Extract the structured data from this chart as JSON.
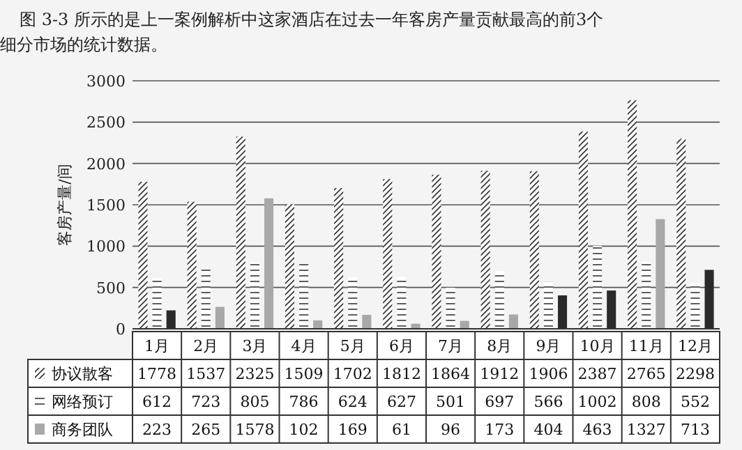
{
  "chart_data": {
    "type": "bar",
    "title": "图 3-3 所示的是上一案例解析中这家酒店在过去一年客房产量贡献最高的前3个细分市场的统计数据。",
    "ylabel": "客房产量/间",
    "categories": [
      "1月",
      "2月",
      "3月",
      "4月",
      "5月",
      "6月",
      "7月",
      "8月",
      "9月",
      "10月",
      "11月",
      "12月"
    ],
    "series": [
      {
        "name": "协议散客",
        "color": "#3a3a3a",
        "values": [
          1778,
          1537,
          2325,
          1509,
          1702,
          1812,
          1864,
          1912,
          1906,
          2387,
          2765,
          2298
        ]
      },
      {
        "name": "网络预订",
        "color": "#4a4a4a",
        "values": [
          612,
          723,
          805,
          786,
          624,
          627,
          501,
          697,
          566,
          1002,
          808,
          552
        ]
      },
      {
        "name": "商务团队",
        "color": "#a8a8a8",
        "colors": [
          "#2a2a2a",
          "#a8a8a8",
          "#a8a8a8",
          "#a8a8a8",
          "#a8a8a8",
          "#a8a8a8",
          "#a8a8a8",
          "#a8a8a8",
          "#2a2a2a",
          "#2a2a2a",
          "#a8a8a8",
          "#2a2a2a"
        ],
        "values": [
          223,
          265,
          1578,
          102,
          169,
          61,
          96,
          173,
          404,
          463,
          1327,
          713
        ]
      }
    ],
    "ylim": [
      0,
      3000
    ],
    "yticks": [
      0,
      500,
      1000,
      1500,
      2000,
      2500,
      3000
    ],
    "grid": "y",
    "data_labels": true,
    "legend": "bottom left"
  }
}
